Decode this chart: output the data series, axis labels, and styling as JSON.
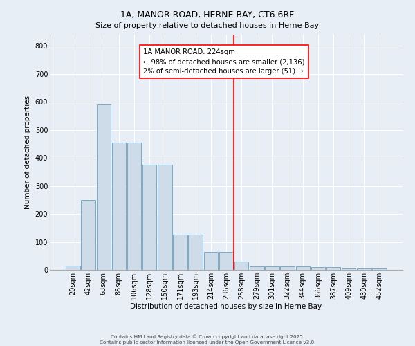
{
  "title": "1A, MANOR ROAD, HERNE BAY, CT6 6RF",
  "subtitle": "Size of property relative to detached houses in Herne Bay",
  "xlabel": "Distribution of detached houses by size in Herne Bay",
  "ylabel": "Number of detached properties",
  "bar_labels": [
    "20sqm",
    "42sqm",
    "63sqm",
    "85sqm",
    "106sqm",
    "128sqm",
    "150sqm",
    "171sqm",
    "193sqm",
    "214sqm",
    "236sqm",
    "258sqm",
    "279sqm",
    "301sqm",
    "322sqm",
    "344sqm",
    "366sqm",
    "387sqm",
    "409sqm",
    "430sqm",
    "452sqm"
  ],
  "bar_values": [
    15,
    250,
    590,
    455,
    455,
    375,
    375,
    126,
    126,
    65,
    65,
    30,
    12,
    12,
    12,
    12,
    10,
    10,
    5,
    5,
    5
  ],
  "bar_color": "#cddce8",
  "bar_edge_color": "#7aaac8",
  "vline_x": 10.5,
  "vline_color": "red",
  "annotation_text": "1A MANOR ROAD: 224sqm\n← 98% of detached houses are smaller (2,136)\n2% of semi-detached houses are larger (51) →",
  "annotation_box_color": "white",
  "annotation_box_edge_color": "red",
  "ylim": [
    0,
    840
  ],
  "yticks": [
    0,
    100,
    200,
    300,
    400,
    500,
    600,
    700,
    800
  ],
  "footer1": "Contains HM Land Registry data © Crown copyright and database right 2025.",
  "footer2": "Contains public sector information licensed under the Open Government Licence v3.0.",
  "background_color": "#e8eef5",
  "plot_bg_color": "#e8eef5",
  "title_fontsize": 9,
  "subtitle_fontsize": 8,
  "tick_fontsize": 7,
  "label_fontsize": 7.5
}
